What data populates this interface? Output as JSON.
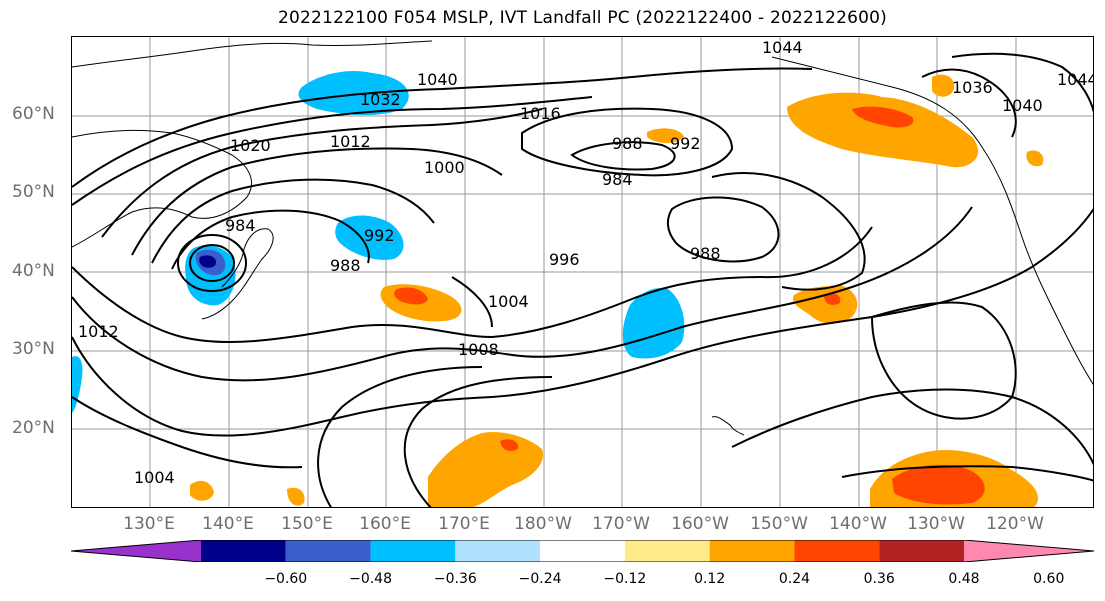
{
  "title": "2022122100 F054 MSLP, IVT Landfall PC (2022122400 - 2022122600)",
  "lat_labels": [
    "60°N",
    "50°N",
    "40°N",
    "30°N",
    "20°N"
  ],
  "lon_labels": [
    "130°E",
    "140°E",
    "150°E",
    "160°E",
    "170°E",
    "180°W",
    "170°W",
    "160°W",
    "150°W",
    "140°W",
    "130°W",
    "120°W"
  ],
  "contour_labels": [
    "1044",
    "1040",
    "1032",
    "1036",
    "1040",
    "1044",
    "1020",
    "1016",
    "1012",
    "1000",
    "988",
    "984",
    "992",
    "984",
    "992",
    "988",
    "996",
    "988",
    "1004",
    "1008",
    "1004",
    "1012"
  ],
  "colorbar": {
    "colors": [
      "#9932cc",
      "#00008b",
      "#3a5fcd",
      "#00bfff",
      "#b0e2ff",
      "#ffffff",
      "#ffeb8a",
      "#ffa500",
      "#ff4500",
      "#b22222",
      "#ff88b0"
    ],
    "tick_labels": [
      "−0.60",
      "−0.48",
      "−0.36",
      "−0.24",
      "−0.12",
      "0.12",
      "0.24",
      "0.36",
      "0.48",
      "0.60"
    ]
  }
}
